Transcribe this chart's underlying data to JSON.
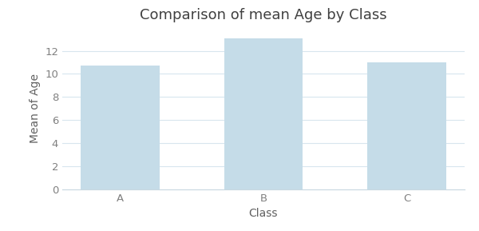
{
  "categories": [
    "A",
    "B",
    "C"
  ],
  "values": [
    10.75,
    13.1,
    11.0
  ],
  "bar_color": "#c5dce8",
  "bar_edgecolor": "none",
  "title": "Comparison of mean Age by Class",
  "title_fontsize": 13,
  "xlabel": "Class",
  "ylabel": "Mean of Age",
  "axis_label_fontsize": 10,
  "tick_fontsize": 9.5,
  "ylim": [
    0,
    14
  ],
  "yticks": [
    0,
    2,
    4,
    6,
    8,
    10,
    12
  ],
  "background_color": "#ffffff",
  "plot_bg_color": "#ffffff",
  "grid_color": "#d8e6ee",
  "bar_width": 0.55,
  "figsize": [
    6.0,
    2.89
  ],
  "dpi": 100,
  "title_color": "#404040",
  "label_color": "#606060",
  "tick_color": "#808080"
}
